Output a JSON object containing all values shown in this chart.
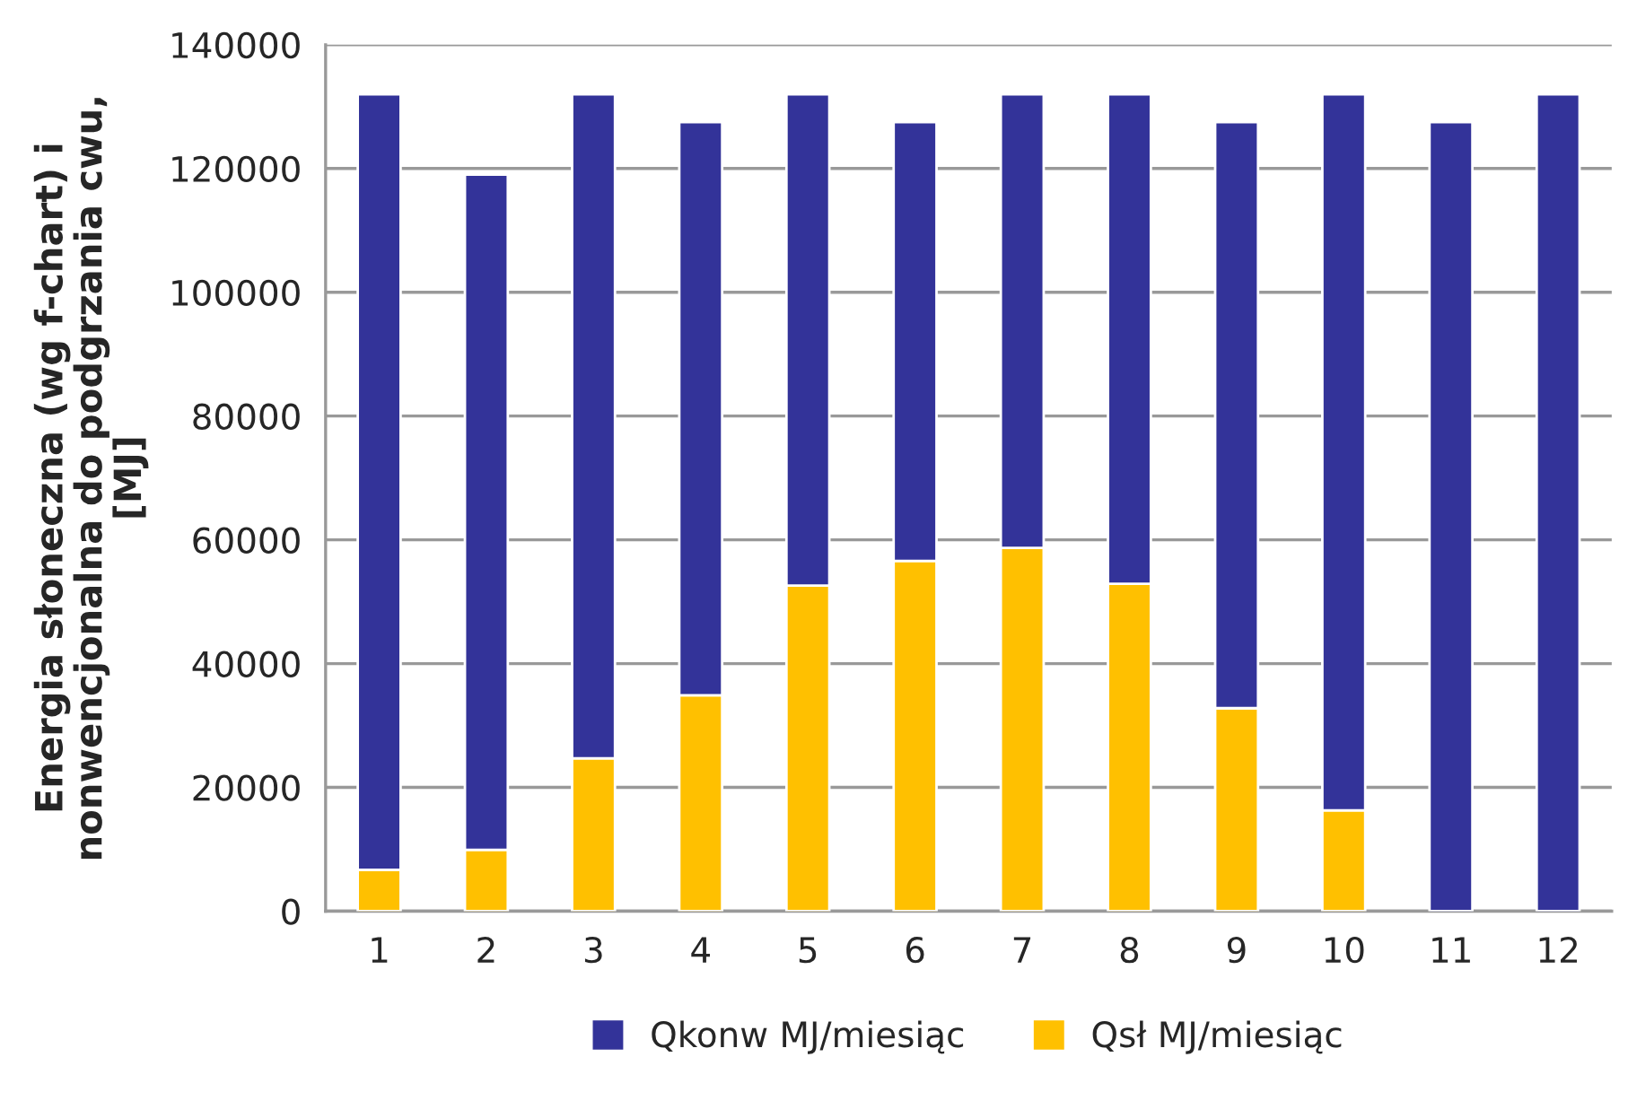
{
  "chart_data": {
    "type": "bar",
    "stacked": true,
    "ylabel": "Energia słoneczna (wg f-chart) i\nnonwencjonalna do podgrzania cwu,\n[MJ]",
    "categories": [
      "1",
      "2",
      "3",
      "4",
      "5",
      "6",
      "7",
      "8",
      "9",
      "10",
      "11",
      "12"
    ],
    "series": [
      {
        "name": "Qsł MJ/miesiąc",
        "color": "#ffc000",
        "values": [
          6700,
          9900,
          24700,
          34900,
          52600,
          56600,
          58700,
          52900,
          32800,
          16300,
          0,
          0
        ]
      },
      {
        "name": "Qkonw MJ/miesiąc",
        "color": "#333399",
        "values": [
          125300,
          109100,
          107300,
          92600,
          79400,
          70900,
          73300,
          79100,
          94700,
          115700,
          127500,
          132000
        ]
      }
    ],
    "ylim": [
      0,
      140000
    ],
    "yticks": [
      0,
      20000,
      40000,
      60000,
      80000,
      100000,
      120000,
      140000
    ],
    "grid": "y",
    "legend": "bottom"
  }
}
